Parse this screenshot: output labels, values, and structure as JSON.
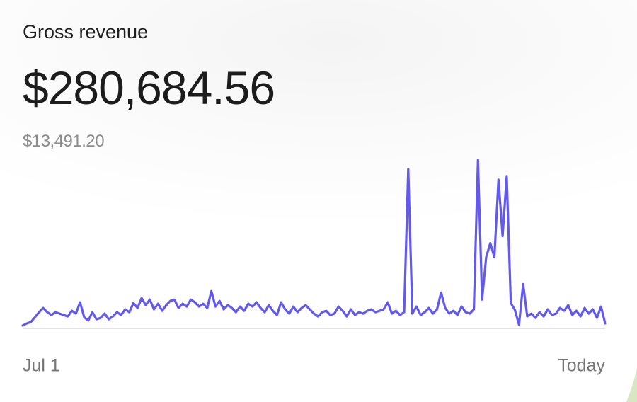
{
  "card": {
    "title": "Gross revenue",
    "total": "$280,684.56",
    "comparison": "$13,491.20"
  },
  "chart_data": {
    "type": "line",
    "color": "#6259f0",
    "ylim": [
      0,
      240
    ],
    "categories": [
      "Jul 1",
      null,
      null,
      null,
      null,
      null,
      null,
      null,
      null,
      null,
      null,
      null,
      null,
      null,
      null,
      null,
      null,
      null,
      null,
      null,
      null,
      null,
      null,
      null,
      null,
      null,
      null,
      null,
      null,
      null,
      null,
      null,
      null,
      null,
      null,
      null,
      null,
      null,
      null,
      null,
      null,
      null,
      null,
      null,
      null,
      null,
      null,
      null,
      null,
      null,
      null,
      null,
      null,
      null,
      null,
      null,
      null,
      null,
      null,
      null,
      null,
      null,
      null,
      null,
      null,
      null,
      null,
      null,
      null,
      null,
      null,
      null,
      null,
      null,
      null,
      null,
      null,
      null,
      null,
      null,
      null,
      null,
      null,
      null,
      null,
      null,
      null,
      null,
      null,
      null,
      null,
      null,
      null,
      null,
      null,
      null,
      null,
      null,
      null,
      null,
      null,
      null,
      null,
      null,
      null,
      null,
      null,
      null,
      null,
      null,
      null,
      null,
      null,
      null,
      null,
      null,
      null,
      null,
      null,
      null,
      null,
      null,
      null,
      null,
      null,
      null,
      null,
      null,
      null,
      null,
      null,
      null,
      null,
      null,
      null,
      null,
      null,
      null,
      null,
      null,
      null,
      null,
      "Today"
    ],
    "values": [
      3,
      6,
      8,
      15,
      22,
      28,
      22,
      18,
      22,
      20,
      18,
      16,
      24,
      20,
      36,
      15,
      10,
      22,
      12,
      14,
      20,
      12,
      16,
      22,
      18,
      26,
      22,
      35,
      28,
      42,
      32,
      40,
      26,
      34,
      24,
      32,
      38,
      40,
      28,
      34,
      30,
      40,
      36,
      30,
      34,
      28,
      52,
      30,
      38,
      26,
      32,
      28,
      22,
      30,
      24,
      34,
      30,
      36,
      28,
      22,
      32,
      24,
      18,
      36,
      26,
      20,
      30,
      22,
      28,
      32,
      26,
      20,
      16,
      22,
      24,
      18,
      20,
      30,
      24,
      16,
      26,
      18,
      22,
      20,
      24,
      26,
      22,
      24,
      26,
      36,
      20,
      24,
      18,
      22,
      225,
      20,
      30,
      18,
      22,
      28,
      20,
      26,
      50,
      28,
      20,
      24,
      18,
      30,
      22,
      20,
      26,
      238,
      40,
      100,
      120,
      100,
      210,
      130,
      215,
      35,
      25,
      4,
      62,
      16,
      20,
      14,
      22,
      16,
      26,
      18,
      20,
      28,
      24,
      32,
      18,
      24,
      16,
      28,
      20,
      26,
      14,
      30,
      6
    ]
  }
}
